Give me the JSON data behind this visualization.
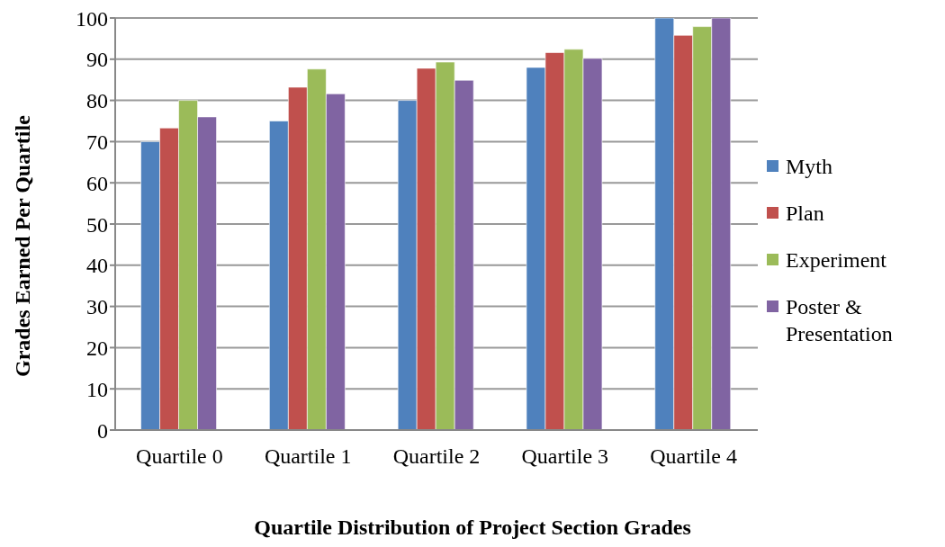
{
  "chart_data": {
    "type": "bar",
    "title": "Quartile Distribution of Project Section Grades",
    "ylabel": "Grades Earned Per Quartile",
    "categories": [
      "Quartile 0",
      "Quartile 1",
      "Quartile 2",
      "Quartile 3",
      "Quartile 4"
    ],
    "series": [
      {
        "name": "Myth",
        "color": "#4f81bd",
        "values": [
          70,
          75,
          80,
          88,
          100
        ]
      },
      {
        "name": "Plan",
        "color": "#c0504d",
        "values": [
          73.3,
          83.2,
          87.8,
          91.6,
          95.8
        ]
      },
      {
        "name": "Experiment",
        "color": "#9bbb59",
        "values": [
          80,
          87.6,
          89.3,
          92.4,
          97.9
        ]
      },
      {
        "name": "Poster & Presentation",
        "color": "#8064a2",
        "values": [
          76,
          81.6,
          84.9,
          90.2,
          100
        ]
      }
    ],
    "ylim": [
      0,
      100
    ],
    "yticks": [
      0,
      10,
      20,
      30,
      40,
      50,
      60,
      70,
      80,
      90,
      100
    ],
    "grid": "y",
    "legend": "right"
  }
}
